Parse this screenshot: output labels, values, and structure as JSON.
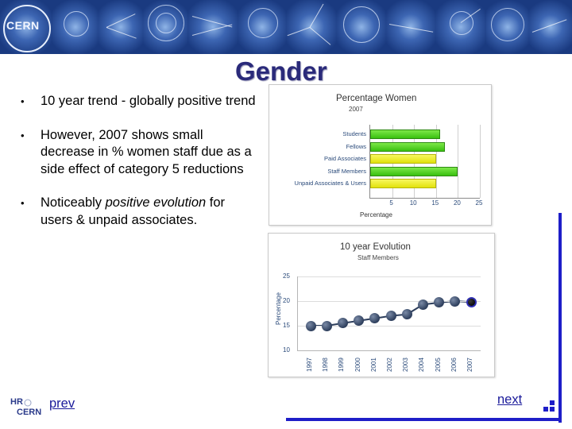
{
  "banner": {
    "logo_text": "CERN"
  },
  "slide": {
    "title": "Gender",
    "bullets": [
      {
        "text": "10 year trend - globally positive trend"
      },
      {
        "text": "However, 2007 shows small decrease in % women staff due as a side effect of category 5 reductions"
      },
      {
        "pre": "Noticeably ",
        "em": "positive evolution",
        "post": " for users & unpaid associates."
      }
    ],
    "bullet_glyph": "•"
  },
  "nav": {
    "prev": "prev",
    "next": "next"
  },
  "hr_logo": {
    "top": "HR",
    "bottom": "CERN"
  },
  "colors": {
    "frame": "#1e1ec8",
    "title": "#2a2a7a",
    "bar_green": "#39c010",
    "bar_yellow": "#e2e20c"
  },
  "chart_data": [
    {
      "type": "bar",
      "orientation": "horizontal",
      "title": "Percentage Women",
      "subtitle": "2007",
      "categories": [
        "Students",
        "Fellows",
        "Paid Associates",
        "Staff Members",
        "Unpaid Associates & Users"
      ],
      "values": [
        16,
        17,
        15,
        20,
        15
      ],
      "bar_colors": [
        "green",
        "green",
        "yellow",
        "green",
        "yellow"
      ],
      "xlabel": "Percentage",
      "xticks": [
        "5",
        "10",
        "15",
        "20",
        "25"
      ],
      "xlim": [
        0,
        25
      ]
    },
    {
      "type": "line",
      "title": "10 year Evolution",
      "subtitle": "Staff Members",
      "ylabel": "Percentage",
      "x": [
        "1997",
        "1998",
        "1999",
        "2000",
        "2001",
        "2002",
        "2003",
        "2004",
        "2005",
        "2006",
        "2007"
      ],
      "values": [
        15.0,
        15.0,
        15.5,
        16.0,
        16.5,
        17.0,
        17.3,
        19.3,
        19.7,
        20.0,
        19.8
      ],
      "yticks": [
        "10",
        "15",
        "20",
        "25"
      ],
      "ylim": [
        10,
        25
      ]
    }
  ]
}
